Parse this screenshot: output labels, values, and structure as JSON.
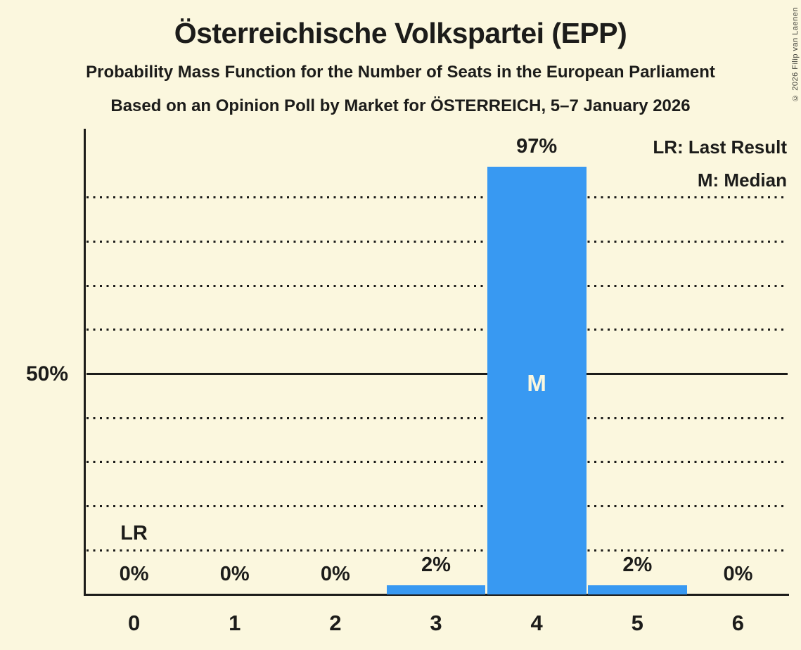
{
  "header": {
    "title": "Österreichische Volkspartei (EPP)",
    "subtitle": "Probability Mass Function for the Number of Seats in the European Parliament",
    "poll_line": "Based on an Opinion Poll by Market for ÖSTERREICH, 5–7 January 2026"
  },
  "legend": {
    "lr": "LR: Last Result",
    "m": "M: Median"
  },
  "copyright": "© 2026 Filip van Laenen",
  "colors": {
    "background": "#FBF7DE",
    "text": "#1C1C1A",
    "bar": "#3899F2",
    "median_label": "#FBF7DE"
  },
  "chart_data": {
    "type": "bar",
    "title": "Probability Mass Function for the Number of Seats in the European Parliament",
    "categories": [
      "0",
      "1",
      "2",
      "3",
      "4",
      "5",
      "6"
    ],
    "values": [
      0,
      0,
      0,
      2,
      97,
      2,
      0
    ],
    "value_labels": [
      "0%",
      "0%",
      "0%",
      "2%",
      "97%",
      "2%",
      "0%"
    ],
    "ylim": [
      0,
      100
    ],
    "y_tick": {
      "pct": 50,
      "label": "50%"
    },
    "dotted_gridlines_pct": [
      10,
      20,
      30,
      40,
      60,
      70,
      80,
      90
    ],
    "solid_gridline_pct": 50,
    "grid": "dotted-horizontal",
    "legend_position": "top-right",
    "annotations": {
      "last_result": {
        "seat_index": 0,
        "label": "LR"
      },
      "median": {
        "seat_index": 4,
        "label": "M"
      }
    }
  }
}
